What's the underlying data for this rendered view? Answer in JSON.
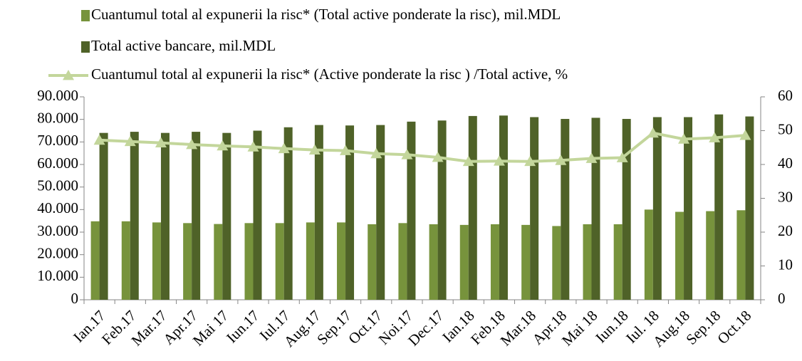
{
  "chart_data": {
    "type": "bar_line",
    "categories": [
      "Ian.17",
      "Feb.17",
      "Mar.17",
      "Apr.17",
      "Mai 17",
      "Iun.17",
      "Iul.17",
      "Aug.17",
      "Sep.17",
      "Oct.17",
      "Noi.17",
      "Dec.17",
      "Ian.18",
      "Feb.18",
      "Mar.18",
      "Apr.18",
      "Mai 18",
      "Iun.18",
      "Iul. 18",
      "Aug.18",
      "Sep.18",
      "Oct.18"
    ],
    "series": [
      {
        "name": "Cuantumul total al expunerii la risc* (Total active ponderate la risc), mil.MDL",
        "color": "#77933c",
        "type": "bar",
        "values": [
          34800,
          34800,
          34300,
          34000,
          33600,
          34000,
          34000,
          34300,
          34300,
          33500,
          34000,
          33500,
          33200,
          33500,
          33200,
          32700,
          33500,
          33500,
          40000,
          39000,
          39300,
          39700
        ]
      },
      {
        "name": "Total active bancare, mil.MDL",
        "color": "#4f6228",
        "type": "bar",
        "values": [
          74000,
          74500,
          74000,
          74500,
          74000,
          75000,
          76500,
          77500,
          77300,
          77500,
          79000,
          79500,
          81500,
          81700,
          81000,
          80200,
          80700,
          80200,
          81000,
          81000,
          82200,
          81300
        ]
      },
      {
        "name": "Cuantumul total al expunerii la risc* (Active ponderate la risc ) /Total active, %",
        "color": "#c3d69b",
        "type": "line",
        "axis": "y2",
        "values": [
          47.2,
          46.8,
          46.4,
          45.9,
          45.5,
          45.2,
          44.7,
          44.3,
          44.1,
          43.2,
          42.9,
          42.1,
          40.9,
          41.0,
          40.9,
          41.2,
          41.8,
          42.0,
          49.3,
          47.5,
          47.9,
          48.6
        ]
      }
    ],
    "ylim": [
      0,
      90000
    ],
    "yticks": [
      0,
      {
        "value": 10000,
        "label": "10.000"
      },
      {
        "value": 20000,
        "label": "20.000"
      },
      {
        "value": 30000,
        "label": "30.000"
      },
      {
        "value": 40000,
        "label": "40.000"
      },
      {
        "value": 50000,
        "label": "50.000"
      },
      {
        "value": 60000,
        "label": "60.000"
      },
      {
        "value": 70000,
        "label": "70.000"
      },
      {
        "value": 80000,
        "label": "80.000"
      },
      {
        "value": 90000,
        "label": "90.000"
      }
    ],
    "y2lim": [
      0,
      60
    ],
    "y2ticks": [
      0,
      10,
      20,
      30,
      40,
      50,
      60
    ],
    "grid": false
  }
}
